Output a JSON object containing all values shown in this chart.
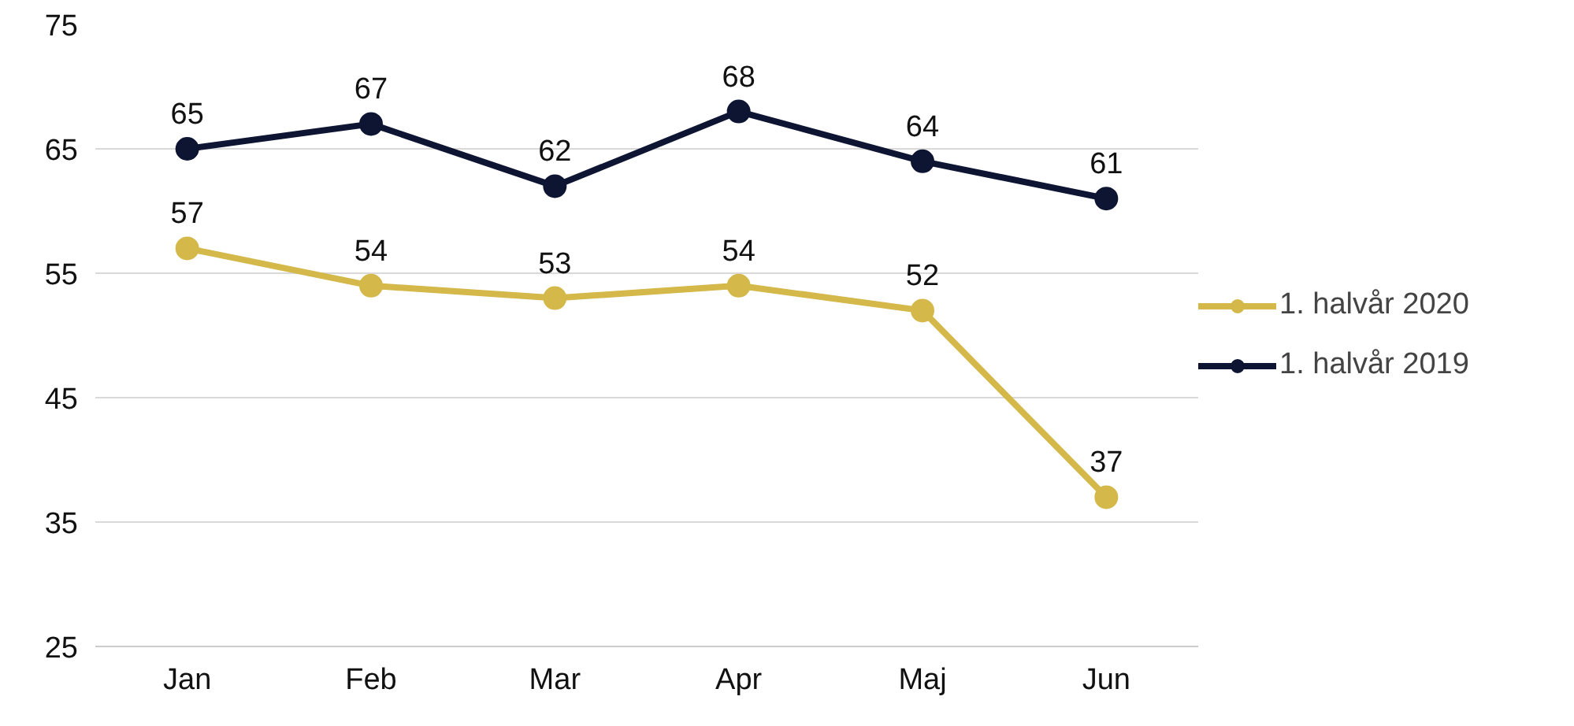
{
  "chart_data": {
    "type": "line",
    "categories": [
      "Jan",
      "Feb",
      "Mar",
      "Apr",
      "Maj",
      "Jun"
    ],
    "series": [
      {
        "name": "1. halvår 2020",
        "color": "#d4b84a",
        "values": [
          57,
          54,
          53,
          54,
          52,
          37
        ]
      },
      {
        "name": "1. halvår 2019",
        "color": "#0d1533",
        "values": [
          65,
          67,
          62,
          68,
          64,
          61
        ]
      }
    ],
    "ylim": [
      25,
      75
    ],
    "yticks": [
      25,
      35,
      45,
      55,
      65,
      75
    ],
    "grid": "y",
    "legend": "right",
    "marker": "circle",
    "line_style": "solid",
    "data_labels": true
  }
}
